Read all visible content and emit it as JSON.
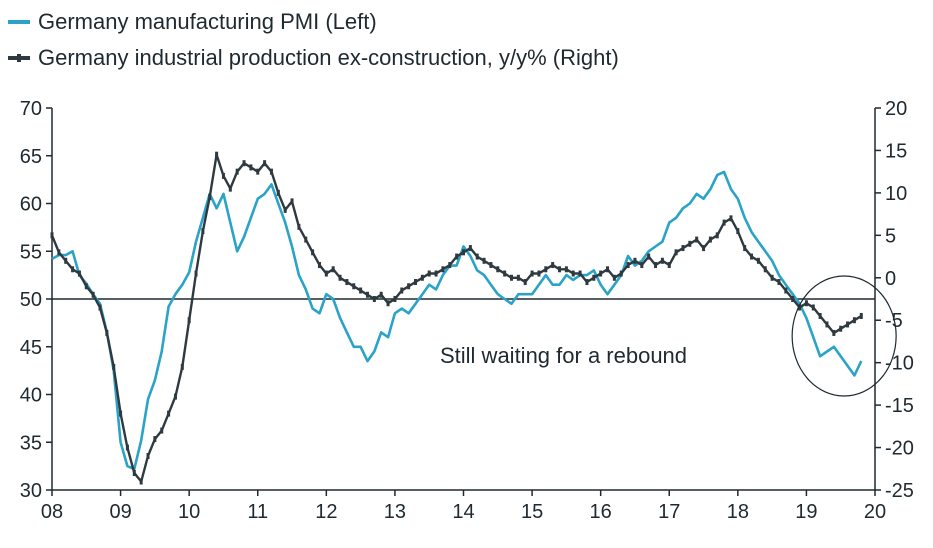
{
  "chart_data": {
    "type": "line",
    "legend": [
      {
        "name": "Germany manufacturing PMI (Left)",
        "color": "#2aa3c7",
        "axis": "left"
      },
      {
        "name": "Germany industrial production ex-construction, y/y% (Right)",
        "color": "#2e3a40",
        "axis": "right"
      }
    ],
    "x_ticks": [
      "08",
      "09",
      "10",
      "11",
      "12",
      "13",
      "14",
      "15",
      "16",
      "17",
      "18",
      "19",
      "20"
    ],
    "x_range": [
      2008.0,
      2020.0
    ],
    "y_left": {
      "ticks": [
        30,
        35,
        40,
        45,
        50,
        55,
        60,
        65,
        70
      ],
      "range": [
        30,
        70
      ]
    },
    "y_right": {
      "ticks": [
        20,
        15,
        10,
        5,
        0,
        -5,
        -10,
        -15,
        -20,
        -25
      ],
      "range": [
        -25,
        20
      ]
    },
    "reference_line": {
      "axis": "left",
      "value": 50
    },
    "annotation": "Still waiting for a rebound",
    "series": [
      {
        "name": "Germany manufacturing PMI",
        "axis": "left",
        "points": [
          [
            2008.0,
            54.2
          ],
          [
            2008.1,
            54.6
          ],
          [
            2008.2,
            54.6
          ],
          [
            2008.3,
            55.0
          ],
          [
            2008.4,
            52.5
          ],
          [
            2008.5,
            51.6
          ],
          [
            2008.6,
            50.5
          ],
          [
            2008.7,
            49.5
          ],
          [
            2008.8,
            46.5
          ],
          [
            2008.9,
            42.5
          ],
          [
            2009.0,
            35.0
          ],
          [
            2009.1,
            32.5
          ],
          [
            2009.2,
            32.2
          ],
          [
            2009.3,
            35.2
          ],
          [
            2009.4,
            39.5
          ],
          [
            2009.5,
            41.5
          ],
          [
            2009.6,
            44.5
          ],
          [
            2009.7,
            49.2
          ],
          [
            2009.8,
            50.5
          ],
          [
            2009.9,
            51.5
          ],
          [
            2010.0,
            52.8
          ],
          [
            2010.1,
            56.0
          ],
          [
            2010.2,
            58.5
          ],
          [
            2010.3,
            61.0
          ],
          [
            2010.4,
            59.5
          ],
          [
            2010.5,
            61.0
          ],
          [
            2010.6,
            58.0
          ],
          [
            2010.7,
            55.0
          ],
          [
            2010.8,
            56.5
          ],
          [
            2010.9,
            58.5
          ],
          [
            2011.0,
            60.5
          ],
          [
            2011.1,
            61.0
          ],
          [
            2011.2,
            62.0
          ],
          [
            2011.3,
            60.0
          ],
          [
            2011.4,
            58.0
          ],
          [
            2011.5,
            55.5
          ],
          [
            2011.6,
            52.5
          ],
          [
            2011.7,
            51.0
          ],
          [
            2011.8,
            49.0
          ],
          [
            2011.9,
            48.5
          ],
          [
            2012.0,
            50.5
          ],
          [
            2012.1,
            50.0
          ],
          [
            2012.2,
            48.0
          ],
          [
            2012.3,
            46.5
          ],
          [
            2012.4,
            45.0
          ],
          [
            2012.5,
            45.0
          ],
          [
            2012.6,
            43.5
          ],
          [
            2012.7,
            44.5
          ],
          [
            2012.8,
            46.5
          ],
          [
            2012.9,
            46.0
          ],
          [
            2013.0,
            48.5
          ],
          [
            2013.1,
            49.0
          ],
          [
            2013.2,
            48.5
          ],
          [
            2013.3,
            49.5
          ],
          [
            2013.4,
            50.5
          ],
          [
            2013.5,
            51.5
          ],
          [
            2013.6,
            51.0
          ],
          [
            2013.7,
            52.5
          ],
          [
            2013.8,
            53.5
          ],
          [
            2013.9,
            53.5
          ],
          [
            2014.0,
            55.5
          ],
          [
            2014.1,
            54.5
          ],
          [
            2014.2,
            53.0
          ],
          [
            2014.3,
            52.5
          ],
          [
            2014.4,
            51.5
          ],
          [
            2014.5,
            50.5
          ],
          [
            2014.6,
            50.0
          ],
          [
            2014.7,
            49.5
          ],
          [
            2014.8,
            50.5
          ],
          [
            2014.9,
            50.5
          ],
          [
            2015.0,
            50.5
          ],
          [
            2015.1,
            51.5
          ],
          [
            2015.2,
            52.5
          ],
          [
            2015.3,
            51.5
          ],
          [
            2015.4,
            51.5
          ],
          [
            2015.5,
            52.5
          ],
          [
            2015.6,
            52.0
          ],
          [
            2015.7,
            52.5
          ],
          [
            2015.8,
            52.5
          ],
          [
            2015.9,
            53.0
          ],
          [
            2016.0,
            51.5
          ],
          [
            2016.1,
            50.5
          ],
          [
            2016.2,
            51.5
          ],
          [
            2016.3,
            52.5
          ],
          [
            2016.4,
            54.5
          ],
          [
            2016.5,
            53.5
          ],
          [
            2016.6,
            54.0
          ],
          [
            2016.7,
            55.0
          ],
          [
            2016.8,
            55.5
          ],
          [
            2016.9,
            56.0
          ],
          [
            2017.0,
            58.0
          ],
          [
            2017.1,
            58.5
          ],
          [
            2017.2,
            59.5
          ],
          [
            2017.3,
            60.0
          ],
          [
            2017.4,
            61.0
          ],
          [
            2017.5,
            60.5
          ],
          [
            2017.6,
            61.5
          ],
          [
            2017.7,
            63.0
          ],
          [
            2017.8,
            63.3
          ],
          [
            2017.9,
            61.5
          ],
          [
            2018.0,
            60.5
          ],
          [
            2018.1,
            58.5
          ],
          [
            2018.2,
            57.0
          ],
          [
            2018.3,
            56.0
          ],
          [
            2018.4,
            55.0
          ],
          [
            2018.5,
            54.0
          ],
          [
            2018.6,
            52.5
          ],
          [
            2018.7,
            51.5
          ],
          [
            2018.8,
            50.5
          ],
          [
            2018.9,
            49.5
          ],
          [
            2019.0,
            48.0
          ],
          [
            2019.1,
            46.0
          ],
          [
            2019.2,
            44.0
          ],
          [
            2019.3,
            44.5
          ],
          [
            2019.4,
            45.0
          ],
          [
            2019.5,
            44.0
          ],
          [
            2019.6,
            43.0
          ],
          [
            2019.7,
            42.0
          ],
          [
            2019.8,
            43.5
          ]
        ]
      },
      {
        "name": "Germany industrial production ex-construction, y/y%",
        "axis": "right",
        "points": [
          [
            2008.0,
            5.0
          ],
          [
            2008.1,
            3.0
          ],
          [
            2008.2,
            2.0
          ],
          [
            2008.3,
            1.0
          ],
          [
            2008.4,
            0.5
          ],
          [
            2008.5,
            -1.0
          ],
          [
            2008.6,
            -2.0
          ],
          [
            2008.7,
            -3.5
          ],
          [
            2008.8,
            -6.5
          ],
          [
            2008.9,
            -10.5
          ],
          [
            2009.0,
            -16.0
          ],
          [
            2009.1,
            -20.0
          ],
          [
            2009.2,
            -23.0
          ],
          [
            2009.3,
            -24.0
          ],
          [
            2009.4,
            -21.0
          ],
          [
            2009.5,
            -19.0
          ],
          [
            2009.6,
            -18.0
          ],
          [
            2009.7,
            -16.0
          ],
          [
            2009.8,
            -14.0
          ],
          [
            2009.9,
            -10.5
          ],
          [
            2010.0,
            -5.0
          ],
          [
            2010.1,
            0.5
          ],
          [
            2010.2,
            5.5
          ],
          [
            2010.3,
            9.5
          ],
          [
            2010.4,
            14.5
          ],
          [
            2010.5,
            12.0
          ],
          [
            2010.6,
            10.5
          ],
          [
            2010.7,
            12.5
          ],
          [
            2010.8,
            13.5
          ],
          [
            2010.9,
            13.0
          ],
          [
            2011.0,
            12.5
          ],
          [
            2011.1,
            13.5
          ],
          [
            2011.2,
            12.5
          ],
          [
            2011.3,
            10.0
          ],
          [
            2011.4,
            8.0
          ],
          [
            2011.5,
            9.0
          ],
          [
            2011.6,
            6.0
          ],
          [
            2011.7,
            4.5
          ],
          [
            2011.8,
            3.0
          ],
          [
            2011.9,
            1.5
          ],
          [
            2012.0,
            0.5
          ],
          [
            2012.1,
            1.0
          ],
          [
            2012.2,
            0.0
          ],
          [
            2012.3,
            -0.5
          ],
          [
            2012.4,
            -1.0
          ],
          [
            2012.5,
            -1.5
          ],
          [
            2012.6,
            -2.0
          ],
          [
            2012.7,
            -2.5
          ],
          [
            2012.8,
            -2.0
          ],
          [
            2012.9,
            -3.0
          ],
          [
            2013.0,
            -2.5
          ],
          [
            2013.1,
            -1.5
          ],
          [
            2013.2,
            -1.0
          ],
          [
            2013.3,
            -0.5
          ],
          [
            2013.4,
            0.0
          ],
          [
            2013.5,
            0.5
          ],
          [
            2013.6,
            0.5
          ],
          [
            2013.7,
            1.0
          ],
          [
            2013.8,
            1.5
          ],
          [
            2013.9,
            2.5
          ],
          [
            2014.0,
            3.0
          ],
          [
            2014.1,
            3.5
          ],
          [
            2014.2,
            2.5
          ],
          [
            2014.3,
            2.0
          ],
          [
            2014.4,
            1.5
          ],
          [
            2014.5,
            1.0
          ],
          [
            2014.6,
            0.5
          ],
          [
            2014.7,
            0.0
          ],
          [
            2014.8,
            0.0
          ],
          [
            2014.9,
            -0.5
          ],
          [
            2015.0,
            0.5
          ],
          [
            2015.1,
            0.5
          ],
          [
            2015.2,
            1.0
          ],
          [
            2015.3,
            1.5
          ],
          [
            2015.4,
            1.0
          ],
          [
            2015.5,
            1.0
          ],
          [
            2015.6,
            0.5
          ],
          [
            2015.7,
            0.5
          ],
          [
            2015.8,
            -0.5
          ],
          [
            2015.9,
            0.0
          ],
          [
            2016.0,
            0.5
          ],
          [
            2016.1,
            1.0
          ],
          [
            2016.2,
            0.0
          ],
          [
            2016.3,
            0.5
          ],
          [
            2016.4,
            1.5
          ],
          [
            2016.5,
            2.0
          ],
          [
            2016.6,
            1.5
          ],
          [
            2016.7,
            2.5
          ],
          [
            2016.8,
            1.5
          ],
          [
            2016.9,
            2.0
          ],
          [
            2017.0,
            1.5
          ],
          [
            2017.1,
            3.0
          ],
          [
            2017.2,
            3.5
          ],
          [
            2017.3,
            4.0
          ],
          [
            2017.4,
            4.5
          ],
          [
            2017.5,
            3.5
          ],
          [
            2017.6,
            4.5
          ],
          [
            2017.7,
            5.0
          ],
          [
            2017.8,
            6.5
          ],
          [
            2017.9,
            7.0
          ],
          [
            2018.0,
            5.5
          ],
          [
            2018.1,
            3.5
          ],
          [
            2018.2,
            2.5
          ],
          [
            2018.3,
            2.0
          ],
          [
            2018.4,
            1.0
          ],
          [
            2018.5,
            0.0
          ],
          [
            2018.6,
            -0.5
          ],
          [
            2018.7,
            -1.5
          ],
          [
            2018.8,
            -2.5
          ],
          [
            2018.9,
            -3.5
          ],
          [
            2019.0,
            -3.0
          ],
          [
            2019.1,
            -3.5
          ],
          [
            2019.2,
            -4.5
          ],
          [
            2019.3,
            -5.5
          ],
          [
            2019.4,
            -6.5
          ],
          [
            2019.5,
            -6.0
          ],
          [
            2019.6,
            -5.5
          ],
          [
            2019.7,
            -5.0
          ],
          [
            2019.8,
            -4.5
          ]
        ]
      }
    ]
  }
}
